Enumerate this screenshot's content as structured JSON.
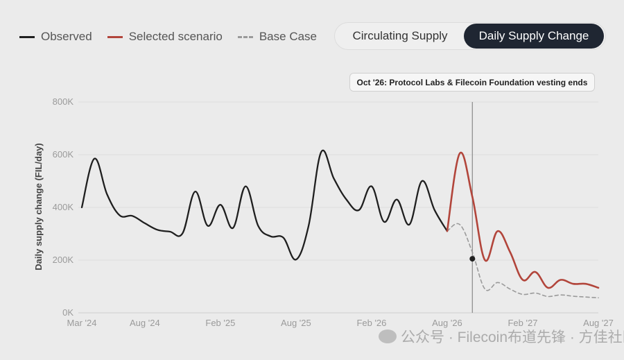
{
  "legend": {
    "observed": "Observed",
    "selected": "Selected scenario",
    "base": "Base Case"
  },
  "toggle": {
    "circulating": "Circulating Supply",
    "daily": "Daily Supply Change"
  },
  "colors": {
    "observed": "#1f1f1f",
    "selected": "#b2453b",
    "base": "#9a9a9a",
    "toggle_active_bg": "#1f2632"
  },
  "watermark": "公众号 · Filecoin布道先锋 · 方佳社区",
  "chart_data": {
    "type": "line",
    "ylabel": "Daily supply change (FIL/day)",
    "xlabel": "",
    "x_ticks": [
      "Mar '24",
      "Aug '24",
      "Feb '25",
      "Aug '25",
      "Feb '26",
      "Aug '26",
      "Feb '27",
      "Aug '27"
    ],
    "y_ticks": [
      "0K",
      "200K",
      "400K",
      "600K",
      "800K"
    ],
    "ylim": [
      0,
      800000
    ],
    "xlim": [
      "2024-03",
      "2027-08"
    ],
    "grid": true,
    "legend_position": "top-left",
    "annotation": {
      "x": "2026-10",
      "label": "Oct '26: Protocol Labs & Filecoin Foundation vesting ends",
      "marker_value": 205000
    },
    "series": [
      {
        "name": "Observed",
        "x": [
          "2024-03",
          "2024-04",
          "2024-05",
          "2024-06",
          "2024-07",
          "2024-08",
          "2024-09",
          "2024-10",
          "2024-11",
          "2024-12",
          "2025-01",
          "2025-02",
          "2025-03",
          "2025-04",
          "2025-05",
          "2025-06",
          "2025-07",
          "2025-08",
          "2025-09",
          "2025-10",
          "2025-11",
          "2025-12",
          "2026-01",
          "2026-02",
          "2026-03",
          "2026-04",
          "2026-05",
          "2026-06",
          "2026-07",
          "2026-08"
        ],
        "values": [
          400000,
          585000,
          450000,
          370000,
          368000,
          340000,
          315000,
          308000,
          302000,
          460000,
          330000,
          410000,
          322000,
          480000,
          330000,
          290000,
          285000,
          202000,
          330000,
          610000,
          510000,
          430000,
          390000,
          480000,
          345000,
          430000,
          335000,
          500000,
          390000,
          310000
        ]
      },
      {
        "name": "Selected scenario",
        "x": [
          "2026-08",
          "2026-09",
          "2026-10",
          "2026-11",
          "2026-12",
          "2027-01",
          "2027-02",
          "2027-03",
          "2027-04",
          "2027-05",
          "2027-06",
          "2027-07",
          "2027-08"
        ],
        "values": [
          310000,
          605000,
          440000,
          200000,
          310000,
          230000,
          125000,
          155000,
          95000,
          125000,
          110000,
          110000,
          95000
        ]
      },
      {
        "name": "Base Case",
        "x": [
          "2026-08",
          "2026-09",
          "2026-10",
          "2026-11",
          "2026-12",
          "2027-01",
          "2027-02",
          "2027-03",
          "2027-04",
          "2027-05",
          "2027-06",
          "2027-07",
          "2027-08"
        ],
        "values": [
          310000,
          335000,
          230000,
          90000,
          115000,
          90000,
          70000,
          75000,
          62000,
          68000,
          63000,
          60000,
          57000
        ]
      }
    ]
  }
}
